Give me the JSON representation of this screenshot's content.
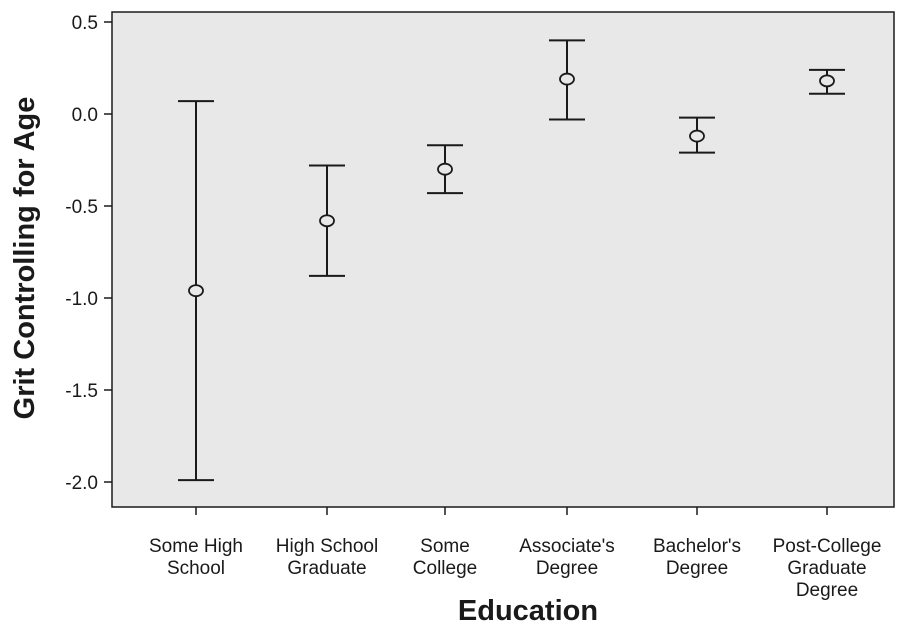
{
  "chart_data": {
    "type": "errorbar",
    "xlabel": "Education",
    "ylabel": "Grit Controlling for Age",
    "ylim": [
      -2.15,
      0.55
    ],
    "yticks": [
      0.5,
      0.0,
      -0.5,
      -1.0,
      -1.5,
      -2.0
    ],
    "ytick_labels": [
      "0.5",
      "0.0",
      "-0.5",
      "-1.0",
      "-1.5",
      "-2.0"
    ],
    "categories": [
      [
        "Some High",
        "School"
      ],
      [
        "High School",
        "Graduate"
      ],
      [
        "Some",
        "College"
      ],
      [
        "Associate's",
        "Degree"
      ],
      [
        "Bachelor's",
        "Degree"
      ],
      [
        "Post-College",
        "Graduate",
        "Degree"
      ]
    ],
    "mean": [
      -0.96,
      -0.58,
      -0.3,
      0.19,
      -0.12,
      0.18
    ],
    "lower": [
      -1.99,
      -0.88,
      -0.43,
      -0.03,
      -0.21,
      0.11
    ],
    "upper": [
      0.07,
      -0.28,
      -0.17,
      0.4,
      -0.02,
      0.24
    ],
    "grid": false,
    "legend": "none",
    "plot_background": "#e8e8e8",
    "line_color": "#1a1a1a"
  }
}
